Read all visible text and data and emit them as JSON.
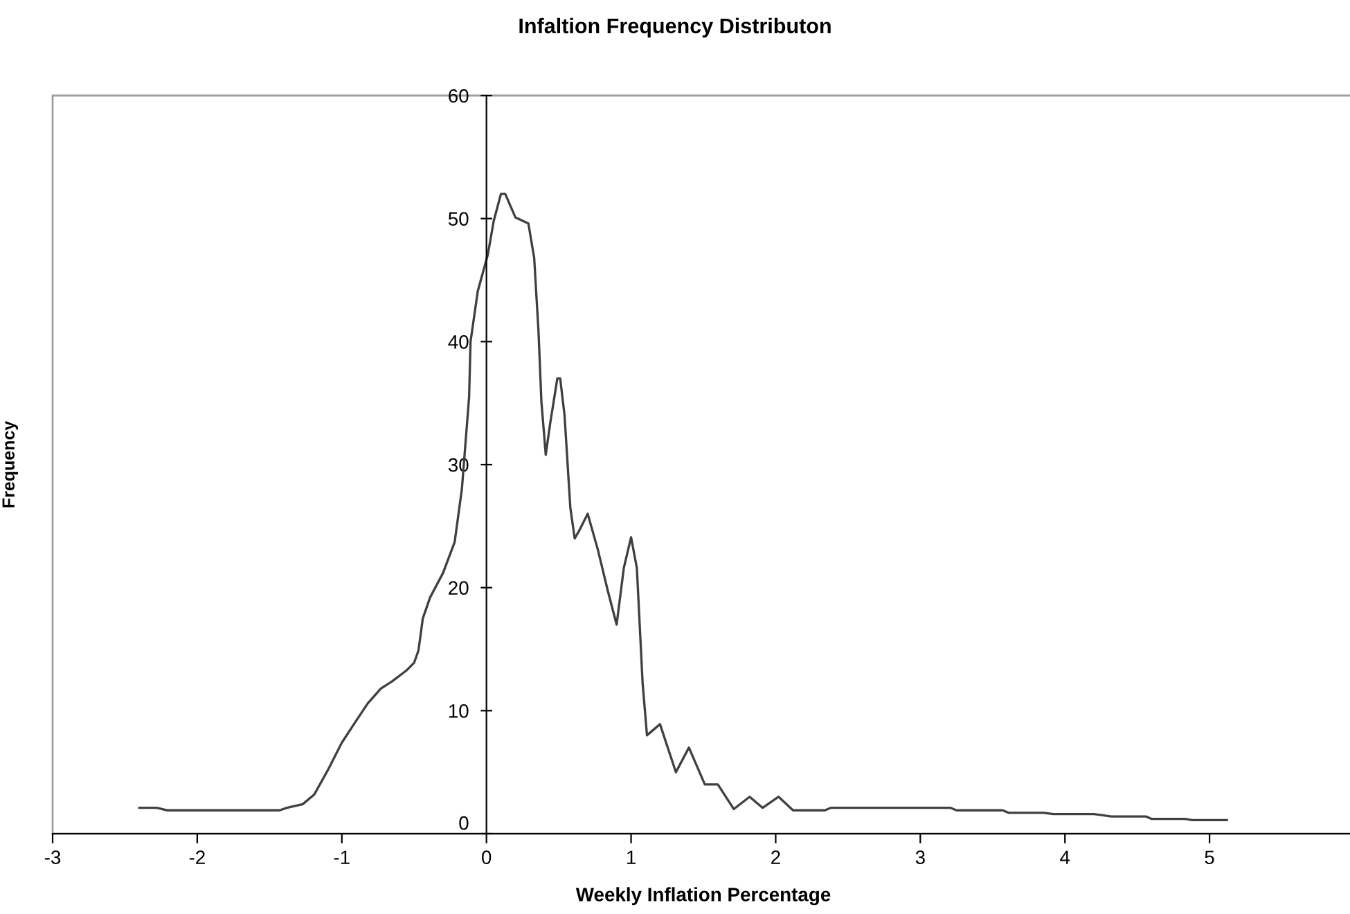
{
  "chart_data": {
    "type": "line",
    "title": "Infaltion Frequency Distributon",
    "xlabel": "Weekly Inflation Percentage",
    "ylabel": "Frequency",
    "xlim": [
      -3,
      6
    ],
    "xticks": [
      -3,
      -2,
      -1,
      0,
      1,
      2,
      3,
      4,
      5
    ],
    "ylim": [
      0,
      60
    ],
    "yticks": [
      0,
      10,
      20,
      30,
      40,
      50,
      60
    ],
    "grid": false,
    "marker": "none",
    "line_style": "solid",
    "series": [
      {
        "color": "#404040",
        "x": [
          -2.4,
          -2.28,
          -2.21,
          -1.43,
          -1.38,
          -1.27,
          -1.19,
          -1.1,
          -1.0,
          -0.9,
          -0.82,
          -0.73,
          -0.65,
          -0.55,
          -0.5,
          -0.47,
          -0.44,
          -0.39,
          -0.3,
          -0.22,
          -0.17,
          -0.12,
          -0.11,
          -0.06,
          0.01,
          0.05,
          0.1,
          0.13,
          0.2,
          0.29,
          0.33,
          0.36,
          0.38,
          0.41,
          0.44,
          0.49,
          0.51,
          0.54,
          0.58,
          0.61,
          0.64,
          0.7,
          0.77,
          0.84,
          0.9,
          0.95,
          1.0,
          1.04,
          1.08,
          1.11,
          1.2,
          1.31,
          1.4,
          1.51,
          1.6,
          1.71,
          1.82,
          1.91,
          2.02,
          2.12,
          2.34,
          2.38,
          3.21,
          3.25,
          3.57,
          3.61,
          3.85,
          3.92,
          4.2,
          4.32,
          4.56,
          4.6,
          4.83,
          4.88,
          5.12
        ],
        "values": [
          2.1,
          2.1,
          1.9,
          1.9,
          2.1,
          2.4,
          3.2,
          5.1,
          7.4,
          9.2,
          10.6,
          11.8,
          12.4,
          13.3,
          13.9,
          14.9,
          17.5,
          19.2,
          21.2,
          23.7,
          28.0,
          35.5,
          40.0,
          44.1,
          47.1,
          49.8,
          52.0,
          52.0,
          50.1,
          49.6,
          46.8,
          40.8,
          35.1,
          30.8,
          33.3,
          37.0,
          37.0,
          34.0,
          26.5,
          24.0,
          24.6,
          26.0,
          23.1,
          19.7,
          17.0,
          21.6,
          24.1,
          21.6,
          12.2,
          8.0,
          8.9,
          5.0,
          7.0,
          4.0,
          4.0,
          2.0,
          3.0,
          2.1,
          3.0,
          1.9,
          1.9,
          2.1,
          2.1,
          1.9,
          1.9,
          1.7,
          1.7,
          1.6,
          1.6,
          1.4,
          1.4,
          1.2,
          1.2,
          1.1,
          1.1
        ]
      }
    ]
  }
}
